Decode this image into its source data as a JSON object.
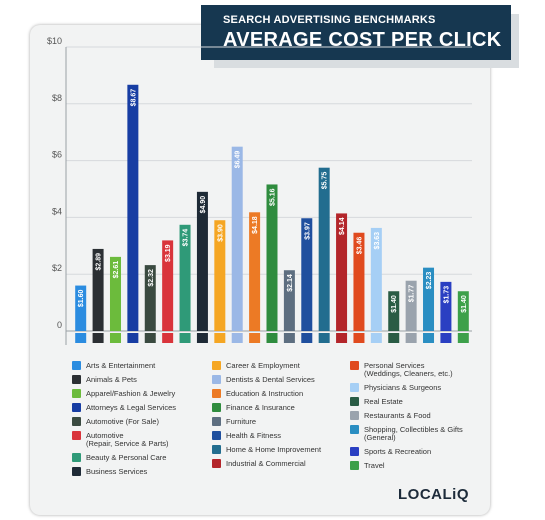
{
  "header": {
    "subtitle": "SEARCH ADVERTISING BENCHMARKS",
    "title": "AVERAGE COST PER CLICK"
  },
  "brand": {
    "logo": "LOCALiQ"
  },
  "chart_data": {
    "type": "bar",
    "ylim": [
      0,
      10
    ],
    "yticks": [
      "0",
      "$2",
      "$4",
      "$6",
      "$8",
      "$10"
    ],
    "grid": true,
    "categories": [
      "Arts & Entertainment",
      "Animals & Pets",
      "Apparel/Fashion & Jewelry",
      "Attorneys & Legal Services",
      "Automotive (For Sale)",
      "Automotive (Repair, Service & Parts)",
      "Beauty & Personal Care",
      "Business Services",
      "Career & Employment",
      "Dentists & Dental Services",
      "Education & Instruction",
      "Finance & Insurance",
      "Furniture",
      "Health & Fitness",
      "Home & Home Improvement",
      "Industrial & Commercial",
      "Personal Services (Weddings, Cleaners, etc.)",
      "Physicians & Surgeons",
      "Real Estate",
      "Restaurants & Food",
      "Shopping, Collectibles & Gifts (General)",
      "Sports & Recreation",
      "Travel"
    ],
    "values": [
      1.6,
      2.89,
      2.61,
      8.67,
      2.32,
      3.19,
      3.74,
      4.9,
      3.9,
      6.49,
      4.18,
      5.16,
      2.14,
      3.97,
      5.75,
      4.14,
      3.46,
      3.63,
      1.4,
      1.77,
      2.23,
      1.73,
      1.4
    ],
    "value_labels": [
      "$1.60",
      "$2.89",
      "$2.61",
      "$8.67",
      "$2.32",
      "$3.19",
      "$3.74",
      "$4.90",
      "$3.90",
      "$6.49",
      "$4.18",
      "$5.16",
      "$2.14",
      "$3.97",
      "$5.75",
      "$4.14",
      "$3.46",
      "$3.63",
      "$1.40",
      "$1.77",
      "$2.23",
      "$1.73",
      "$1.40"
    ],
    "colors": [
      "#2b8ce0",
      "#2b2f33",
      "#6cbb3c",
      "#173da3",
      "#3a4a40",
      "#d9343b",
      "#2f9a78",
      "#1e2a36",
      "#f5a623",
      "#9bb8e6",
      "#ec7a25",
      "#2f8c3e",
      "#5d6e80",
      "#1f4f9e",
      "#226d8f",
      "#b3252a",
      "#e04a1e",
      "#a6cff5",
      "#2a5c45",
      "#9aa3ad",
      "#2a8ec2",
      "#2a3fc2",
      "#3da04a"
    ],
    "icons": [
      "easel-icon",
      "paw-icon",
      "shirt-icon",
      "gavel-icon",
      "tag-icon",
      "car-icon",
      "brush-icon",
      "briefcase-icon",
      "briefcase-icon",
      "tooth-icon",
      "book-icon",
      "dollar-icon",
      "sofa-icon",
      "heart-icon",
      "house-icon",
      "factory-icon",
      "iron-icon",
      "cross-icon",
      "house-icon",
      "cutlery-icon",
      "gift-icon",
      "ball-icon",
      "plane-icon"
    ],
    "legend": {
      "col1": [
        {
          "label": "Arts & Entertainment",
          "color": "#2b8ce0",
          "icon": "easel-icon"
        },
        {
          "label": "Animals & Pets",
          "color": "#2b2f33",
          "icon": "paw-icon"
        },
        {
          "label": "Apparel/Fashion & Jewelry",
          "color": "#6cbb3c",
          "icon": "shirt-icon"
        },
        {
          "label": "Attorneys & Legal Services",
          "color": "#173da3",
          "icon": "gavel-icon"
        },
        {
          "label": "Automotive (For Sale)",
          "color": "#3a4a40",
          "icon": "tag-icon"
        },
        {
          "label": "Automotive",
          "label2": "(Repair, Service & Parts)",
          "color": "#d9343b",
          "icon": "car-icon"
        },
        {
          "label": "Beauty & Personal Care",
          "color": "#2f9a78",
          "icon": "brush-icon"
        },
        {
          "label": "Business Services",
          "color": "#1e2a36",
          "icon": "briefcase-icon"
        }
      ],
      "col2": [
        {
          "label": "Career & Employment",
          "color": "#f5a623",
          "icon": "briefcase-icon"
        },
        {
          "label": "Dentists & Dental Services",
          "color": "#9bb8e6",
          "icon": "tooth-icon"
        },
        {
          "label": "Education & Instruction",
          "color": "#ec7a25",
          "icon": "book-icon"
        },
        {
          "label": "Finance & Insurance",
          "color": "#2f8c3e",
          "icon": "dollar-icon"
        },
        {
          "label": "Furniture",
          "color": "#5d6e80",
          "icon": "sofa-icon"
        },
        {
          "label": "Health & Fitness",
          "color": "#1f4f9e",
          "icon": "heart-icon"
        },
        {
          "label": "Home & Home Improvement",
          "color": "#226d8f",
          "icon": "house-icon"
        },
        {
          "label": "Industrial & Commercial",
          "color": "#b3252a",
          "icon": "factory-icon"
        }
      ],
      "col3": [
        {
          "label": "Personal Services",
          "label2": "(Weddings, Cleaners, etc.)",
          "color": "#e04a1e",
          "icon": "iron-icon"
        },
        {
          "label": "Physicians & Surgeons",
          "color": "#a6cff5",
          "icon": "cross-icon"
        },
        {
          "label": "Real Estate",
          "color": "#2a5c45",
          "icon": "house-icon"
        },
        {
          "label": "Restaurants & Food",
          "color": "#9aa3ad",
          "icon": "cutlery-icon"
        },
        {
          "label": "Shopping, Collectibles & Gifts",
          "label2": "(General)",
          "color": "#2a8ec2",
          "icon": "gift-icon"
        },
        {
          "label": "Sports & Recreation",
          "color": "#2a3fc2",
          "icon": "ball-icon"
        },
        {
          "label": "Travel",
          "color": "#3da04a",
          "icon": "plane-icon"
        }
      ]
    }
  }
}
